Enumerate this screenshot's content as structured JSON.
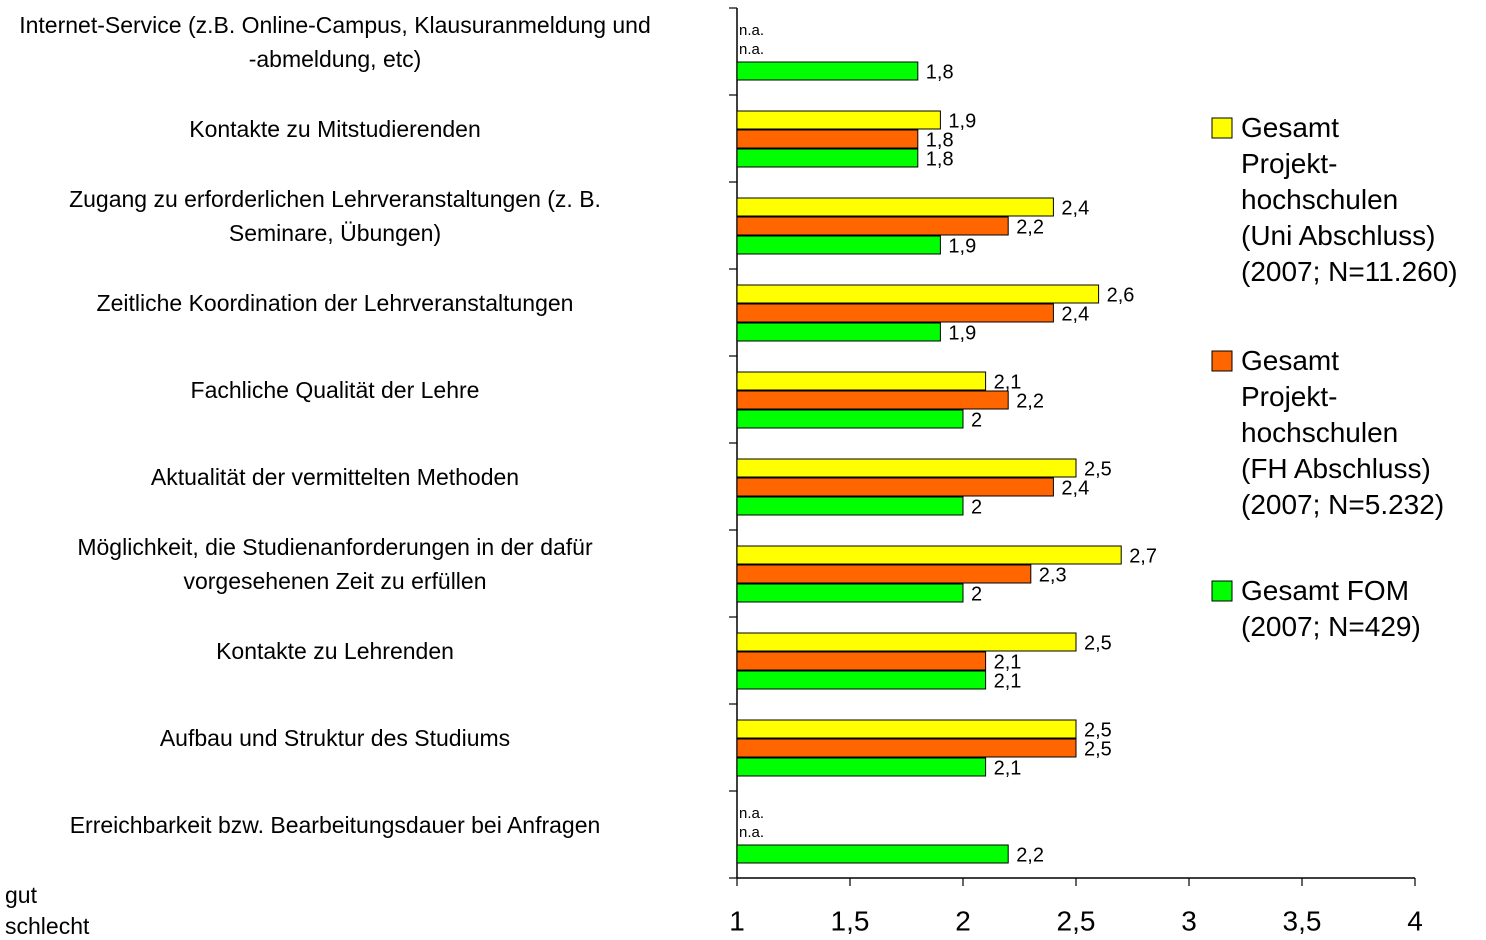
{
  "chart_data": {
    "type": "hbar",
    "categories": [
      "Internet-Service (z.B. Online-Campus, Klausuranmeldung und\n-abmeldung, etc)",
      "Kontakte zu Mitstudierenden",
      "Zugang zu erforderlichen Lehrveranstaltungen (z. B.\nSeminare, Übungen)",
      "Zeitliche Koordination der Lehrveranstaltungen",
      "Fachliche Qualität der Lehre",
      "Aktualität der vermittelten Methoden",
      "Möglichkeit, die Studienanforderungen in der dafür\nvorgesehenen Zeit zu erfüllen",
      "Kontakte zu Lehrenden",
      "Aufbau und Struktur des Studiums",
      "Erreichbarkeit bzw. Bearbeitungsdauer bei Anfragen"
    ],
    "series": [
      {
        "name": "Gesamt\nProjekt-\nhochschulen\n(Uni Abschluss)\n(2007; N=11.260)",
        "color": "#ffff00",
        "values": [
          null,
          1.9,
          2.4,
          2.6,
          2.1,
          2.5,
          2.7,
          2.5,
          2.5,
          null
        ],
        "value_labels": [
          "n.a.",
          "1,9",
          "2,4",
          "2,6",
          "2,1",
          "2,5",
          "2,7",
          "2,5",
          "2,5",
          "n.a."
        ]
      },
      {
        "name": "Gesamt\nProjekt-\nhochschulen\n(FH Abschluss)\n(2007; N=5.232)",
        "color": "#ff6600",
        "values": [
          null,
          1.8,
          2.2,
          2.4,
          2.2,
          2.4,
          2.3,
          2.1,
          2.5,
          null
        ],
        "value_labels": [
          "n.a.",
          "1,8",
          "2,2",
          "2,4",
          "2,2",
          "2,4",
          "2,3",
          "2,1",
          "2,5",
          "n.a."
        ]
      },
      {
        "name": "Gesamt FOM\n(2007; N=429)",
        "color": "#00ff00",
        "values": [
          1.8,
          1.8,
          1.9,
          1.9,
          2,
          2,
          2,
          2.1,
          2.1,
          2.2
        ],
        "value_labels": [
          "1,8",
          "1,8",
          "1,9",
          "1,9",
          "2",
          "2",
          "2",
          "2,1",
          "2,1",
          "2,2"
        ]
      }
    ],
    "xlim": [
      1,
      4
    ],
    "xticks": [
      1,
      {
        "value": 1.5,
        "label": "1,5"
      },
      2,
      {
        "value": 2.5,
        "label": "2,5"
      },
      3,
      {
        "value": 3.5,
        "label": "3,5"
      },
      4
    ],
    "annotations": [
      "gut",
      "schlecht"
    ],
    "legend": "right"
  }
}
